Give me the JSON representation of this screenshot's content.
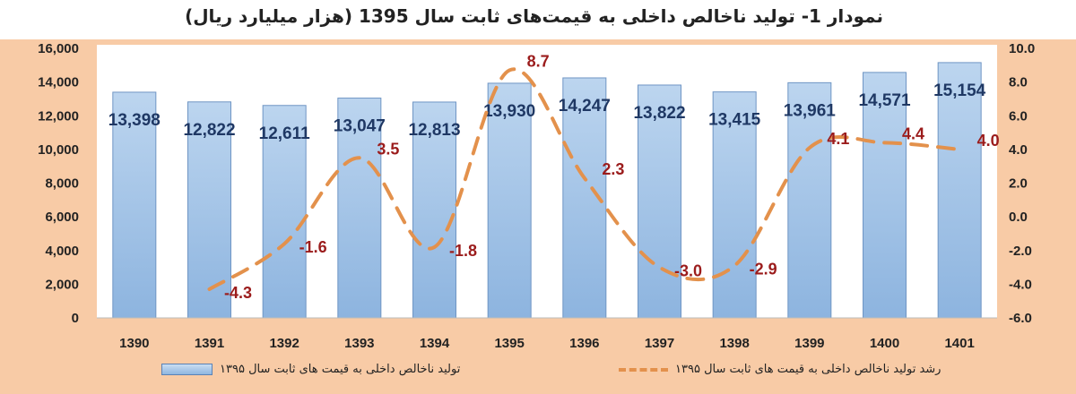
{
  "chart_data": {
    "type": "bar+line",
    "title": "نمودار 1- تولید ناخالص داخلی به قیمت‌های ثابت سال 1395 (هزار میلیارد ریال)",
    "categories": [
      "1390",
      "1391",
      "1392",
      "1393",
      "1394",
      "1395",
      "1396",
      "1397",
      "1398",
      "1399",
      "1400",
      "1401"
    ],
    "series": [
      {
        "name": "تولید ناخالص داخلی به قیمت های ثابت سال ۱۳۹۵",
        "type": "bar",
        "axis": "left",
        "color": "#9dc3e6",
        "values": [
          13398,
          12822,
          12611,
          13047,
          12813,
          13930,
          14247,
          13822,
          13415,
          13961,
          14571,
          15154
        ],
        "labels": [
          "13,398",
          "12,822",
          "12,611",
          "13,047",
          "12,813",
          "13,930",
          "14,247",
          "13,822",
          "13,415",
          "13,961",
          "14,571",
          "15,154"
        ]
      },
      {
        "name": "رشد تولید ناخالص داخلی به قیمت های ثابت سال ۱۳۹۵",
        "type": "line",
        "style": "dashed",
        "axis": "right",
        "color": "#e3914c",
        "values": [
          null,
          -4.3,
          -1.6,
          3.5,
          -1.8,
          8.7,
          2.3,
          -3.0,
          -2.9,
          4.1,
          4.4,
          4.0
        ],
        "labels": [
          "",
          "-4.3",
          "-1.6",
          "3.5",
          "-1.8",
          "8.7",
          "2.3",
          "-3.0",
          "-2.9",
          "4.1",
          "4.4",
          "4.0"
        ]
      }
    ],
    "left_axis": {
      "range": [
        0,
        16000
      ],
      "ticks": [
        "0",
        "2,000",
        "4,000",
        "6,000",
        "8,000",
        "10,000",
        "12,000",
        "14,000",
        "16,000"
      ]
    },
    "right_axis": {
      "range": [
        -6,
        10
      ],
      "ticks": [
        "-6.0",
        "-4.0",
        "-2.0",
        "0.0",
        "2.0",
        "4.0",
        "6.0",
        "8.0",
        "10.0"
      ]
    },
    "grid": false,
    "legend": "bottom",
    "label_color": "#9b1c1c",
    "bar_label_color": "#1f3864"
  }
}
